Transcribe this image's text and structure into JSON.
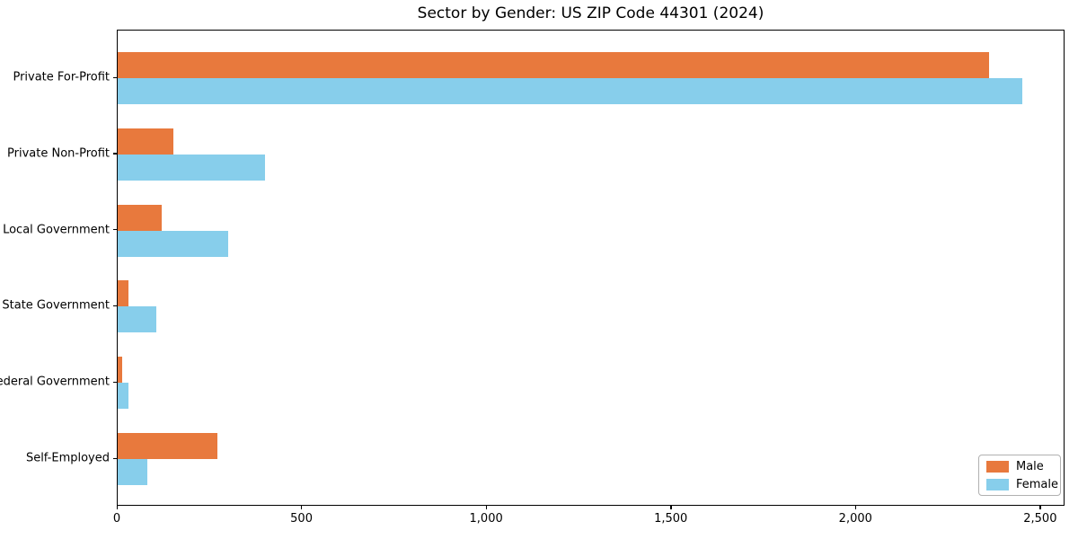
{
  "title": "Sector by Gender: US ZIP Code 44301 (2024)",
  "colors": {
    "male": "#e8793d",
    "female": "#87ceeb",
    "axis": "#000000",
    "legend_border": "#b0b0b0",
    "background": "#ffffff"
  },
  "chart_data": {
    "type": "bar",
    "orientation": "horizontal",
    "title": "Sector by Gender: US ZIP Code 44301 (2024)",
    "categories": [
      "Private For-Profit",
      "Private Non-Profit",
      "Local Government",
      "State Government",
      "Federal Government",
      "Self-Employed"
    ],
    "series": [
      {
        "name": "Male",
        "color": "#e8793d",
        "values": [
          2360,
          150,
          120,
          28,
          12,
          270
        ]
      },
      {
        "name": "Female",
        "color": "#87ceeb",
        "values": [
          2450,
          400,
          300,
          105,
          30,
          80
        ]
      }
    ],
    "xlabel": "",
    "ylabel": "",
    "xlim": [
      0,
      2566
    ],
    "xticks": {
      "values": [
        0,
        500,
        1000,
        1500,
        2000,
        2500
      ],
      "labels": [
        "0",
        "500",
        "1,000",
        "1,500",
        "2,000",
        "2,500"
      ]
    },
    "grid": false,
    "legend": {
      "position": "lower right",
      "entries": [
        "Male",
        "Female"
      ]
    }
  }
}
